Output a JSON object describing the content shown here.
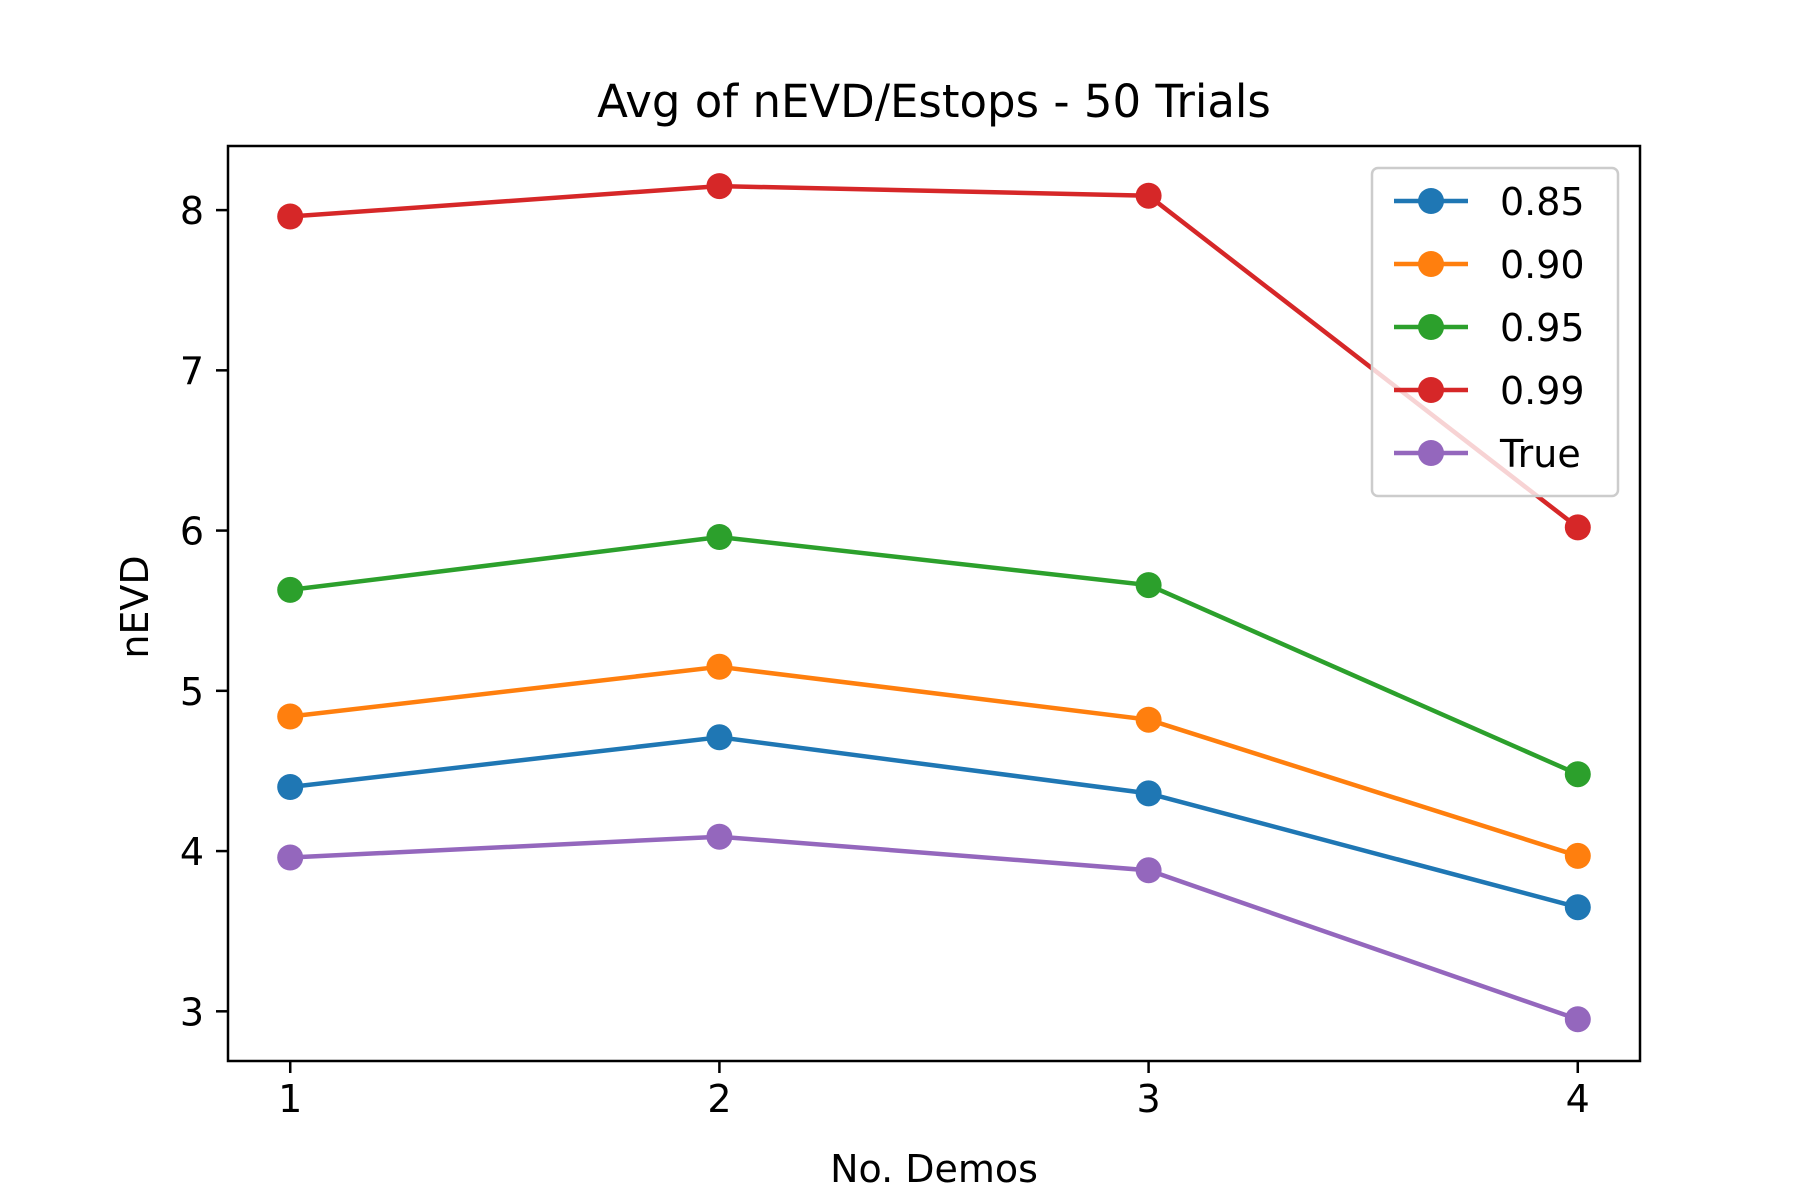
{
  "chart_data": {
    "type": "line",
    "title": "Avg of nEVD/Estops - 50 Trials",
    "xlabel": "No. Demos",
    "ylabel": "nEVD",
    "x": [
      1,
      2,
      3,
      4
    ],
    "xticks": [
      "1",
      "2",
      "3",
      "4"
    ],
    "yticks": [
      "3",
      "4",
      "5",
      "6",
      "7",
      "8"
    ],
    "xlim": [
      0.855,
      4.145
    ],
    "ylim": [
      2.69,
      8.4
    ],
    "grid": false,
    "legend_position": "top-right",
    "series": [
      {
        "name": "0.85",
        "color": "#1f77b4",
        "values": [
          4.4,
          4.71,
          4.36,
          3.65
        ]
      },
      {
        "name": "0.90",
        "color": "#ff7f0e",
        "values": [
          4.84,
          5.15,
          4.82,
          3.97
        ]
      },
      {
        "name": "0.95",
        "color": "#2ca02c",
        "values": [
          5.63,
          5.96,
          5.66,
          4.48
        ]
      },
      {
        "name": "0.99",
        "color": "#d62728",
        "values": [
          7.96,
          8.15,
          8.09,
          6.02
        ]
      },
      {
        "name": "True",
        "color": "#9467bd",
        "values": [
          3.96,
          4.09,
          3.88,
          2.95
        ]
      }
    ]
  }
}
